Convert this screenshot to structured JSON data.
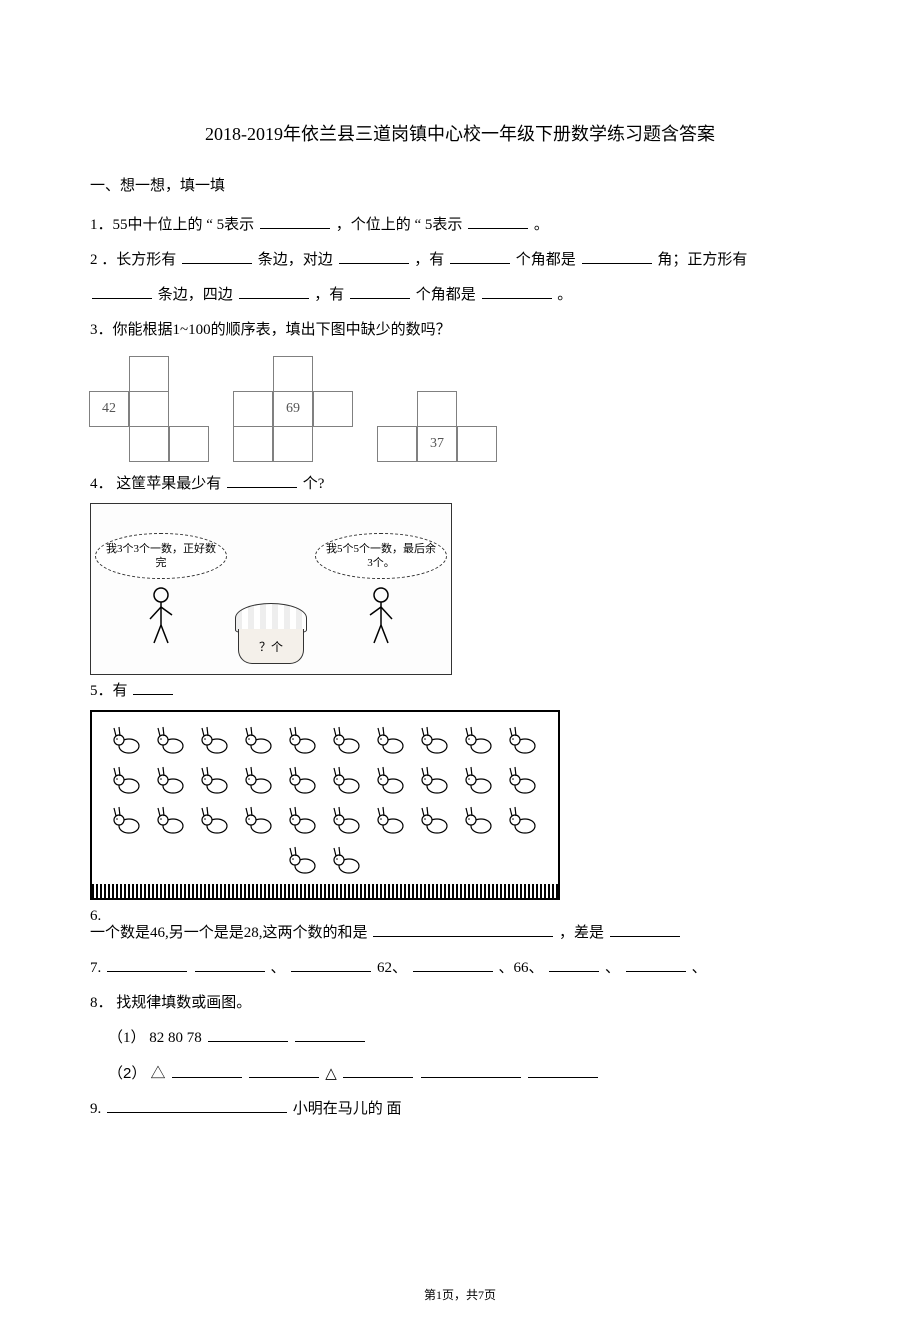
{
  "title": "2018-2019年依兰县三道岗镇中心校一年级下册数学练习题含答案",
  "section1": "一、想一想，填一填",
  "q1_a": "1．55中十位上的 ",
  "q1_b": "“ 5表示 ",
  "q1_c": "，个位上的 ",
  "q1_d": "“ 5表示 ",
  "q1_e": "。",
  "q2_a": "2 ．长方形有",
  "q2_b": "条边，对边",
  "q2_c": "，有",
  "q2_d": "个角都是",
  "q2_e": "角；正方形有",
  "q2_f": "条边，四边",
  "q2_g": "，有",
  "q2_h": "个角都是",
  "q2_i": "。",
  "q3": "3．你能根据1~100的顺序表，填出下图中缺少的数吗？",
  "grid_a": {
    "value": "42"
  },
  "grid_b": {
    "value": "69"
  },
  "grid_c": {
    "value": "37"
  },
  "q4_a": "4． 这筐苹果最少有 ",
  "q4_b": "个?",
  "bubble_left": "我3个3个一数，正好数完",
  "bubble_right": "我5个5个一数，最后余3个。",
  "basket_label": "？个",
  "q5": "5．有",
  "q6_a": "6.",
  "q6_b": "一个数是46,另一个是是28,这两个数的和是 ",
  "q6_c": "，差是 ",
  "q7_a": "7. ",
  "q7_b": "、",
  "q7_c": "62、",
  "q7_d": "、66、",
  "q7_e": "、",
  "q7_f": "、",
  "q8": "8． 找规律填数或画图。",
  "q8_1": "（1） 82  80  78 ",
  "q8_2a": "（2） △ ",
  "q8_2b": " △ ",
  "q9_a": "9. ",
  "q9_b": " 小明在马儿的    面",
  "footer": "第1页，共7页"
}
